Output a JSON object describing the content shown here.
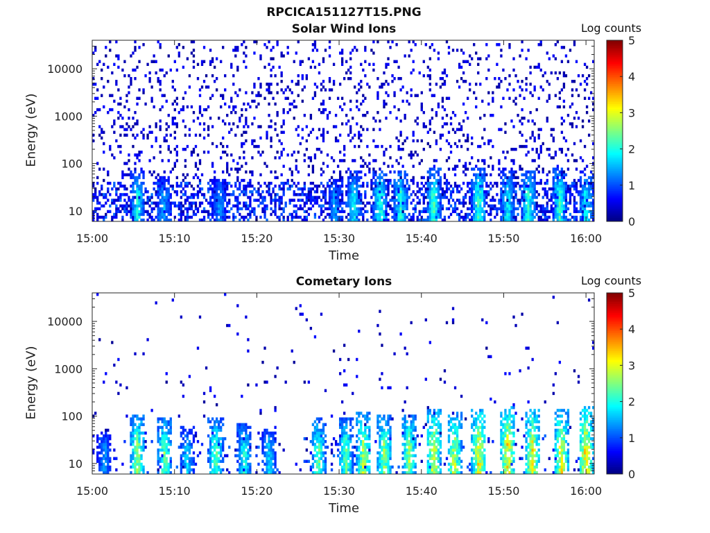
{
  "figure_title": "RPCICA151127T15.PNG",
  "chart_data": [
    {
      "type": "heatmap",
      "title": "Solar Wind Ions",
      "xlabel": "Time",
      "ylabel": "Energy (eV)",
      "x_ticks": [
        "15:00",
        "15:10",
        "15:20",
        "15:30",
        "15:40",
        "15:50",
        "16:00"
      ],
      "y_ticks": [
        "10",
        "100",
        "1000",
        "10000"
      ],
      "y_scale": "log",
      "ylim": [
        6,
        40000
      ],
      "xlim": [
        "15:00",
        "16:01"
      ],
      "colorbar": {
        "label": "Log counts",
        "range": [
          0,
          5
        ],
        "ticks": [
          "0",
          "1",
          "2",
          "3",
          "4",
          "5"
        ],
        "colormap": "jet"
      },
      "grid": false,
      "bursts": [
        {
          "t": 5.5,
          "level": 2.0
        },
        {
          "t": 8.7,
          "level": 1.6
        },
        {
          "t": 15.5,
          "level": 1.5
        },
        {
          "t": 29.5,
          "level": 1.5
        },
        {
          "t": 31.8,
          "level": 2.0
        },
        {
          "t": 35.0,
          "level": 2.2
        },
        {
          "t": 37.5,
          "level": 2.2
        },
        {
          "t": 41.5,
          "level": 2.3
        },
        {
          "t": 47.0,
          "level": 2.3
        },
        {
          "t": 50.5,
          "level": 2.0
        },
        {
          "t": 53.0,
          "level": 2.2
        },
        {
          "t": 56.8,
          "level": 2.3
        },
        {
          "t": 60.0,
          "level": 2.0
        }
      ]
    },
    {
      "type": "heatmap",
      "title": "Cometary Ions",
      "xlabel": "Time",
      "ylabel": "Energy (eV)",
      "x_ticks": [
        "15:00",
        "15:10",
        "15:20",
        "15:30",
        "15:40",
        "15:50",
        "16:00"
      ],
      "y_ticks": [
        "10",
        "100",
        "1000",
        "10000"
      ],
      "y_scale": "log",
      "ylim": [
        6,
        40000
      ],
      "xlim": [
        "15:00",
        "16:01"
      ],
      "colorbar": {
        "label": "Log counts",
        "range": [
          0,
          5
        ],
        "ticks": [
          "0",
          "1",
          "2",
          "3",
          "4",
          "5"
        ],
        "colormap": "jet"
      },
      "grid": false,
      "bursts": [
        {
          "t": 1.5,
          "level": 1.5
        },
        {
          "t": 5.5,
          "level": 2.8
        },
        {
          "t": 8.8,
          "level": 2.6
        },
        {
          "t": 11.5,
          "level": 1.8
        },
        {
          "t": 15.0,
          "level": 2.5
        },
        {
          "t": 18.5,
          "level": 2.2
        },
        {
          "t": 21.5,
          "level": 1.8
        },
        {
          "t": 27.5,
          "level": 2.5
        },
        {
          "t": 30.8,
          "level": 2.5
        },
        {
          "t": 33.0,
          "level": 3.0
        },
        {
          "t": 35.5,
          "level": 2.8
        },
        {
          "t": 38.5,
          "level": 2.8
        },
        {
          "t": 41.5,
          "level": 3.3
        },
        {
          "t": 44.0,
          "level": 3.0
        },
        {
          "t": 47.0,
          "level": 3.4
        },
        {
          "t": 50.5,
          "level": 3.5
        },
        {
          "t": 53.5,
          "level": 3.3
        },
        {
          "t": 57.0,
          "level": 3.3
        },
        {
          "t": 60.0,
          "level": 3.5
        }
      ]
    }
  ]
}
